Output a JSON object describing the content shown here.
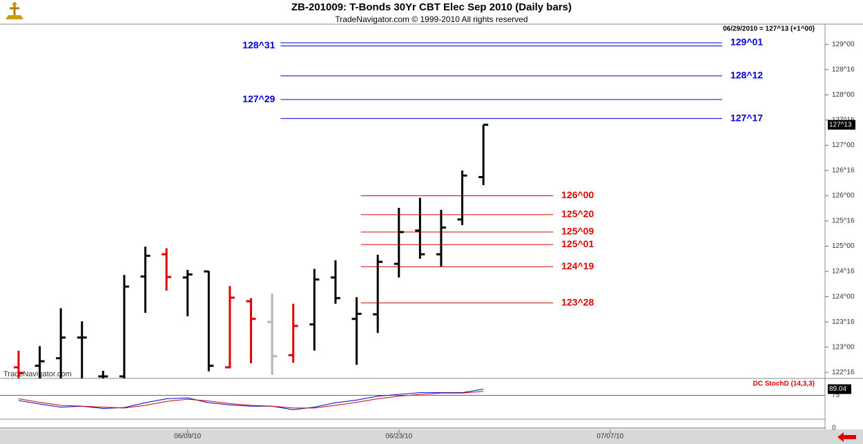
{
  "chart_data": {
    "type": "ohlc",
    "title": "ZB-201009:  T-Bonds 30Yr CBT Elec Sep 2010  (Daily bars)",
    "subtitle": "TradeNavigator.com © 1999-2010 All rights reserved",
    "watermark": "TradeNavigator.com",
    "status": "06/29/2010 = 127^13 (+1^00)",
    "last_price": {
      "value": 127.40625,
      "label": "127^13"
    },
    "xlim": [
      -0.88,
      38.17
    ],
    "xticks": [
      {
        "value": 8,
        "label": "06/09/10"
      },
      {
        "value": 18,
        "label": "06/23/10"
      },
      {
        "value": 28,
        "label": "07/07/10"
      }
    ],
    "ylim": [
      122.38,
      129.4
    ],
    "yticks": [
      {
        "value": 122.5,
        "label": "122^16"
      },
      {
        "value": 123,
        "label": "123^00"
      },
      {
        "value": 123.5,
        "label": "123^16"
      },
      {
        "value": 124,
        "label": "124^00"
      },
      {
        "value": 124.5,
        "label": "124^16"
      },
      {
        "value": 125,
        "label": "125^00"
      },
      {
        "value": 125.5,
        "label": "125^16"
      },
      {
        "value": 126,
        "label": "126^00"
      },
      {
        "value": 126.5,
        "label": "126^16"
      },
      {
        "value": 127,
        "label": "127^00"
      },
      {
        "value": 127.5,
        "label": "127^16"
      },
      {
        "value": 128,
        "label": "128^00"
      },
      {
        "value": 128.5,
        "label": "128^16"
      },
      {
        "value": 129,
        "label": "129^00"
      }
    ],
    "open": [
      122.6,
      122.63,
      122.78,
      123.19,
      122.42,
      122.42,
      124.4,
      124.84,
      124.38,
      124.5,
      122.6,
      123.91,
      123.5,
      122.84,
      123.45,
      124.38,
      123.56,
      123.65,
      124.65,
      125.31,
      124.84,
      125.53,
      126.37
    ],
    "high": [
      122.93,
      123.02,
      123.77,
      123.51,
      122.53,
      124.43,
      124.99,
      124.96,
      124.53,
      124.51,
      124.21,
      123.97,
      124.06,
      123.86,
      124.55,
      124.72,
      123.99,
      124.83,
      125.76,
      125.96,
      125.72,
      126.5,
      127.40625
    ],
    "low": [
      122.2,
      122.2,
      122.2,
      122.2,
      122.2,
      122.2,
      123.68,
      124.12,
      123.61,
      122.52,
      122.58,
      122.68,
      122.45,
      122.69,
      122.93,
      123.86,
      122.65,
      123.28,
      124.38,
      124.75,
      124.6,
      125.42,
      126.21
    ],
    "close": [
      122.49,
      122.72,
      123.19,
      123.19,
      122.42,
      124.2,
      124.81,
      124.39,
      124.44,
      122.63,
      123.98,
      123.56,
      122.82,
      123.42,
      124.34,
      123.97,
      123.66,
      124.69,
      125.28,
      124.84,
      125.37,
      126.4,
      127.40625
    ],
    "colors": [
      "#e00000",
      "#000000",
      "#000000",
      "#000000",
      "#000000",
      "#000000",
      "#000000",
      "#e00000",
      "#000000",
      "#000000",
      "#e00000",
      "#e00000",
      "#b4b4b4",
      "#e00000",
      "#000000",
      "#000000",
      "#000000",
      "#000000",
      "#000000",
      "#000000",
      "#000000",
      "#000000",
      "#000000"
    ],
    "level_groups": [
      {
        "color": "#0000dd",
        "lines": [
          {
            "value": 129.03125,
            "label": "129^01",
            "side": "right"
          },
          {
            "value": 128.96875,
            "label": "128^31",
            "side": "left"
          },
          {
            "value": 128.375,
            "label": "128^12",
            "side": "right"
          },
          {
            "value": 127.90625,
            "label": "127^29",
            "side": "left"
          },
          {
            "value": 127.53125,
            "label": "127^17",
            "side": "right"
          }
        ]
      },
      {
        "color": "#e00000",
        "lines": [
          {
            "value": 126,
            "label": "126^00",
            "side": "right"
          },
          {
            "value": 125.625,
            "label": "125^20",
            "side": "right"
          },
          {
            "value": 125.28125,
            "label": "125^09",
            "side": "right"
          },
          {
            "value": 125.03125,
            "label": "125^01",
            "side": "right"
          },
          {
            "value": 124.59375,
            "label": "124^19",
            "side": "right"
          },
          {
            "value": 123.875,
            "label": "123^28",
            "side": "right"
          }
        ]
      }
    ],
    "indicator": {
      "type": "line",
      "title": "DC StochD (14,3,3)",
      "ylim": [
        0,
        112
      ],
      "yticks": [
        0,
        75
      ],
      "last_value": {
        "value": 89.04,
        "label": "89.04"
      },
      "series": [
        {
          "color": "#0000cc",
          "values": [
            63,
            55,
            48,
            50,
            45,
            47,
            58,
            67,
            69,
            58,
            53,
            50,
            50,
            42,
            48,
            58,
            64,
            73,
            77,
            81,
            81,
            81,
            89.04
          ]
        },
        {
          "color": "#cc0000",
          "values": [
            67,
            59,
            52,
            50,
            48,
            46,
            52,
            61,
            66,
            62,
            56,
            52,
            50,
            46,
            46,
            52,
            59,
            67,
            73,
            77,
            80,
            80,
            84
          ]
        }
      ]
    }
  }
}
